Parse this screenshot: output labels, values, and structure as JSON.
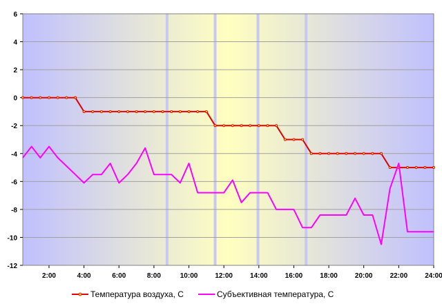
{
  "chart_data": {
    "type": "line",
    "x": [
      0.5,
      1,
      1.5,
      2,
      2.5,
      3,
      3.5,
      4,
      4.5,
      5,
      5.5,
      6,
      6.5,
      7,
      7.5,
      8,
      8.5,
      9,
      9.5,
      10,
      10.5,
      11,
      11.5,
      12,
      12.5,
      13,
      13.5,
      14,
      14.5,
      15,
      15.5,
      16,
      16.5,
      17,
      17.5,
      18,
      18.5,
      19,
      19.5,
      20,
      20.5,
      21,
      21.5,
      22,
      22.5,
      23,
      23.5,
      24
    ],
    "series": [
      {
        "name": "Температура воздуха, С",
        "color": "#e00000",
        "values": [
          0,
          0,
          0,
          0,
          0,
          0,
          0,
          -1,
          -1,
          -1,
          -1,
          -1,
          -1,
          -1,
          -1,
          -1,
          -1,
          -1,
          -1,
          -1,
          -1,
          -1,
          -2,
          -2,
          -2,
          -2,
          -2,
          -2,
          -2,
          -2,
          -3,
          -3,
          -3,
          -4,
          -4,
          -4,
          -4,
          -4,
          -4,
          -4,
          -4,
          -4,
          -5,
          -5,
          -5,
          -5,
          -5,
          -5
        ]
      },
      {
        "name": "Субъективная температура, С",
        "color": "#ff00ff",
        "values": [
          -4.3,
          -3.5,
          -4.3,
          -3.5,
          -4.3,
          -4.9,
          -5.5,
          -6.1,
          -5.5,
          -5.5,
          -4.7,
          -6.1,
          -5.5,
          -4.7,
          -3.6,
          -5.5,
          -5.5,
          -5.5,
          -6.1,
          -4.7,
          -6.8,
          -6.8,
          -6.8,
          -6.8,
          -5.9,
          -7.5,
          -6.8,
          -6.8,
          -6.8,
          -8.0,
          -8.0,
          -8.0,
          -9.3,
          -9.3,
          -8.4,
          -8.4,
          -8.4,
          -8.4,
          -7.2,
          -8.4,
          -8.4,
          -10.5,
          -6.5,
          -4.7,
          -9.6,
          -9.6,
          -9.6,
          -9.6
        ]
      }
    ],
    "x_tick_labels": [
      "2:00",
      "4:00",
      "6:00",
      "8:00",
      "10:00",
      "12:00",
      "14:00",
      "16:00",
      "18:00",
      "20:00",
      "22:00",
      "24:00"
    ],
    "x_ticks": [
      2,
      4,
      6,
      8,
      10,
      12,
      14,
      16,
      18,
      20,
      22,
      24
    ],
    "xlim": [
      0.5,
      24
    ],
    "y_ticks": [
      6,
      4,
      2,
      0,
      -2,
      -4,
      -6,
      -8,
      -10,
      -12
    ],
    "y_tick_labels": [
      "6",
      "4",
      "2",
      "0",
      "-2",
      "-4",
      "-6",
      "-8",
      "-10",
      "-12"
    ],
    "ylim": [
      -12,
      6
    ],
    "grid": true,
    "legend": "bottom",
    "light_lines_x": [
      8.75,
      11.5,
      13.95,
      16.7
    ],
    "background_colors": {
      "edge": "#c0c0ff",
      "center": "#ffffc0"
    }
  }
}
